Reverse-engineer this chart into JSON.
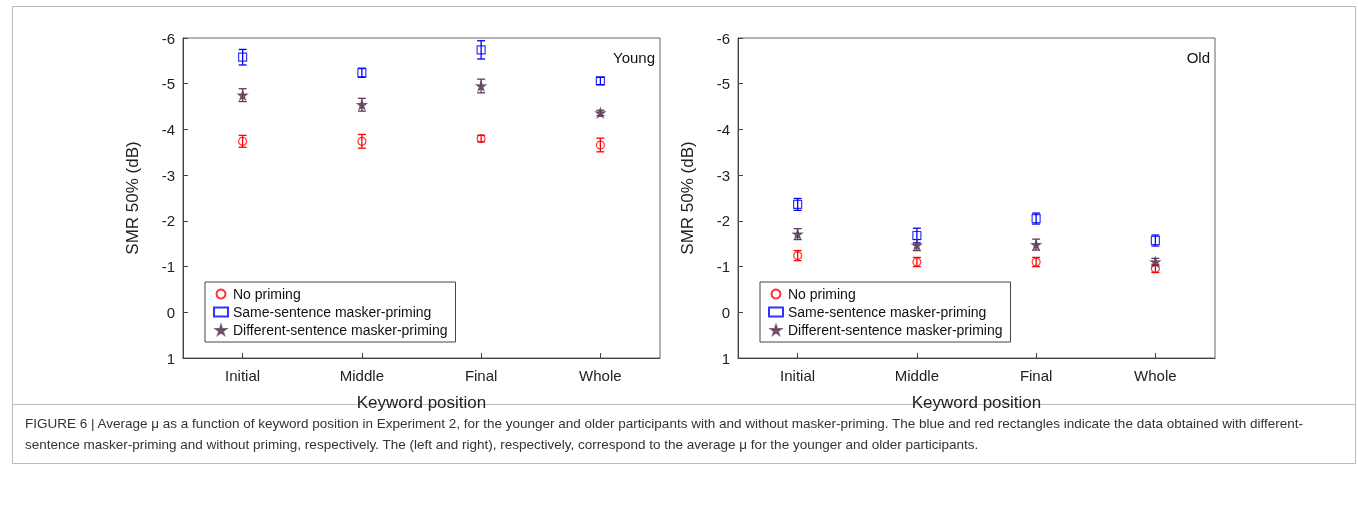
{
  "chart_data": [
    {
      "type": "scatter",
      "xlabel": "Keyword position",
      "ylabel": "SMR 50% (dB)",
      "categories": [
        "Initial",
        "Middle",
        "Final",
        "Whole"
      ],
      "ylim": [
        1,
        -6
      ],
      "yticks": [
        1,
        0,
        -1,
        -2,
        -3,
        -4,
        -5,
        -6
      ],
      "grid": false,
      "legend": "bottom left",
      "annotations": [
        "Young"
      ],
      "series": [
        {
          "name": "No priming",
          "color": "#ff0000",
          "marker": "circle",
          "values": [
            -3.74,
            -3.74,
            -3.8,
            -3.66
          ],
          "errors": [
            0.13,
            0.15,
            0.07,
            0.15
          ]
        },
        {
          "name": "Same-sentence masker-priming",
          "color": "#0000ff",
          "marker": "square",
          "values": [
            -5.58,
            -5.24,
            -5.74,
            -5.06
          ],
          "errors": [
            0.17,
            0.1,
            0.2,
            0.08
          ]
        },
        {
          "name": "Different-sentence masker-priming",
          "color": "#5e3c58",
          "marker": "star",
          "values": [
            -4.75,
            -4.54,
            -4.95,
            -4.36
          ],
          "errors": [
            0.14,
            0.14,
            0.15,
            0.06
          ]
        }
      ]
    },
    {
      "type": "scatter",
      "xlabel": "Keyword position",
      "ylabel": "SMR 50% (dB)",
      "categories": [
        "Initial",
        "Middle",
        "Final",
        "Whole"
      ],
      "ylim": [
        1,
        -6
      ],
      "yticks": [
        1,
        0,
        -1,
        -2,
        -3,
        -4,
        -5,
        -6
      ],
      "grid": false,
      "legend": "bottom left",
      "annotations": [
        "Old",
        "FIGURE 6 | Average μ as a function of keyword position in Experiment 2, for the younger and older participants with and without masker-priming. The blue and red rectangles indicate the data obtained with different-sentence masker-priming and without priming, respectively. The (left and right), respectively, correspond to the average μ for the younger and older participants."
      ],
      "series": [
        {
          "name": "No priming",
          "color": "#ff0000",
          "marker": "circle",
          "values": [
            -1.24,
            -1.1,
            -1.1,
            -0.96
          ],
          "errors": [
            0.11,
            0.1,
            0.1,
            0.09
          ]
        },
        {
          "name": "Same-sentence masker-priming",
          "color": "#0000ff",
          "marker": "square",
          "values": [
            -2.36,
            -1.68,
            -2.05,
            -1.57
          ],
          "errors": [
            0.13,
            0.16,
            0.12,
            0.12
          ]
        },
        {
          "name": "Different-sentence masker-priming",
          "color": "#5e3c58",
          "marker": "star",
          "values": [
            -1.71,
            -1.47,
            -1.48,
            -1.1
          ],
          "errors": [
            0.12,
            0.12,
            0.12,
            0.08
          ]
        }
      ]
    }
  ]
}
